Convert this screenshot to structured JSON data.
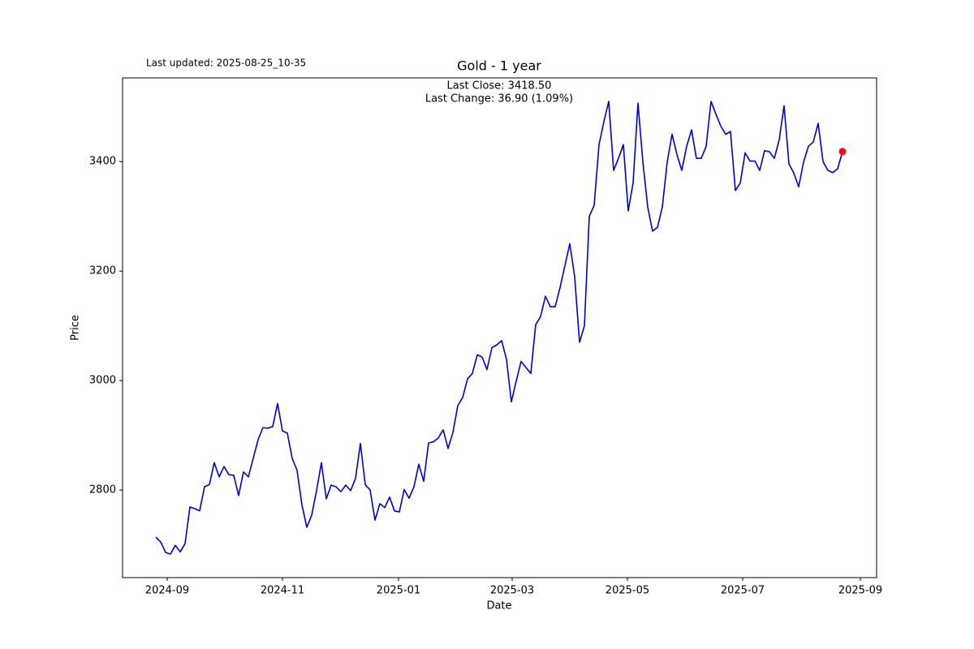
{
  "chart_data": {
    "type": "line",
    "title": "Gold - 1 year",
    "subtitle": "Last updated: 2025-08-25_10-35",
    "annotations": [
      "Last Close: 3418.50",
      "Last Change: 36.90 (1.09%)"
    ],
    "x_label": "Date",
    "y_label": "Price",
    "xlim": [
      -6.83,
      148
    ],
    "xticks": [
      {
        "value": 2.33,
        "label": "2024-09"
      },
      {
        "value": 26,
        "label": "2024-11"
      },
      {
        "value": 49.83,
        "label": "2025-01"
      },
      {
        "value": 73.17,
        "label": "2025-03"
      },
      {
        "value": 96.83,
        "label": "2025-05"
      },
      {
        "value": 120.5,
        "label": "2025-07"
      },
      {
        "value": 144.67,
        "label": "2025-09"
      }
    ],
    "ylim": [
      2640,
      3553
    ],
    "yticks": [
      2800,
      3000,
      3200,
      3400
    ],
    "grid": false,
    "last_marker_color": "#ee1111",
    "series": [
      {
        "name": "Gold",
        "color": "#0000cd",
        "values": [
          2714,
          2705,
          2686,
          2683,
          2699,
          2687,
          2702,
          2769,
          2766,
          2762,
          2806,
          2810,
          2850,
          2824,
          2843,
          2828,
          2827,
          2790,
          2833,
          2824,
          2858,
          2892,
          2914,
          2913,
          2916,
          2958,
          2908,
          2904,
          2858,
          2836,
          2773,
          2732,
          2754,
          2799,
          2850,
          2784,
          2809,
          2806,
          2797,
          2809,
          2799,
          2821,
          2885,
          2810,
          2800,
          2745,
          2775,
          2768,
          2787,
          2762,
          2760,
          2801,
          2785,
          2806,
          2847,
          2816,
          2886,
          2888,
          2895,
          2910,
          2876,
          2905,
          2954,
          2969,
          3003,
          3013,
          3047,
          3043,
          3020,
          3060,
          3065,
          3073,
          3039,
          2961,
          2999,
          3035,
          3024,
          3013,
          3102,
          3117,
          3154,
          3135,
          3135,
          3170,
          3210,
          3250,
          3190,
          3070,
          3100,
          3300,
          3320,
          3431,
          3473,
          3510,
          3384,
          3406,
          3431,
          3310,
          3361,
          3507,
          3400,
          3317,
          3273,
          3280,
          3317,
          3399,
          3450,
          3413,
          3384,
          3428,
          3458,
          3406,
          3406,
          3428,
          3510,
          3487,
          3465,
          3450,
          3455,
          3347,
          3361,
          3416,
          3401,
          3401,
          3384,
          3420,
          3418,
          3406,
          3440,
          3502,
          3396,
          3379,
          3354,
          3399,
          3428,
          3436,
          3470,
          3400,
          3384,
          3380,
          3387,
          3418.5
        ]
      }
    ]
  }
}
